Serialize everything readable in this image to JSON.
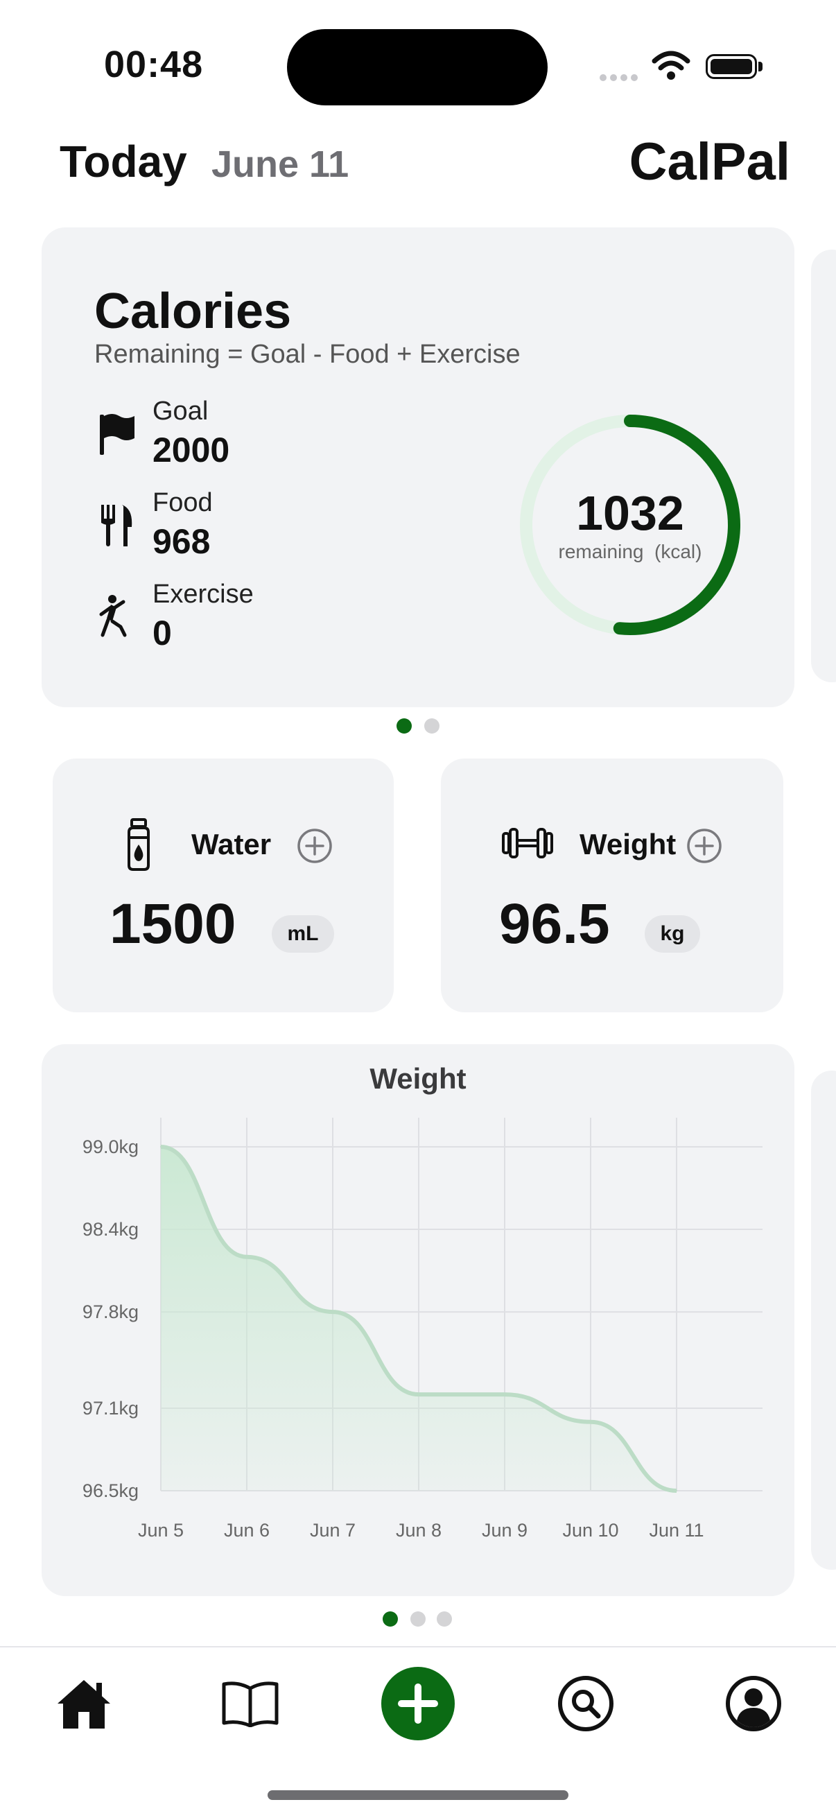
{
  "status": {
    "time": "00:48"
  },
  "header": {
    "title": "Today",
    "date": "June 11",
    "brand": "CalPal"
  },
  "calories": {
    "title": "Calories",
    "formula": "Remaining = Goal - Food + Exercise",
    "goal": {
      "label": "Goal",
      "value": "2000",
      "icon": "flag-icon"
    },
    "food": {
      "label": "Food",
      "value": "968",
      "icon": "fork-knife-icon"
    },
    "exercise": {
      "label": "Exercise",
      "value": "0",
      "icon": "runner-icon"
    },
    "remaining": {
      "value": "1032",
      "label": "remaining",
      "unit": "(kcal)",
      "progress_fraction": 0.516
    }
  },
  "water": {
    "title": "Water",
    "value": "1500",
    "unit": "mL",
    "icon": "water-bottle-icon"
  },
  "weight": {
    "title": "Weight",
    "value": "96.5",
    "unit": "kg",
    "icon": "dumbbell-icon"
  },
  "pager_top": {
    "count": 2,
    "active": 0
  },
  "pager_bottom": {
    "count": 3,
    "active": 0
  },
  "chart_data": {
    "type": "area",
    "title": "Weight",
    "x": [
      "Jun 5",
      "Jun 6",
      "Jun 7",
      "Jun 8",
      "Jun 9",
      "Jun 10",
      "Jun 11"
    ],
    "values": [
      99.0,
      98.2,
      97.8,
      97.2,
      97.2,
      97.0,
      96.5
    ],
    "y_ticks": [
      "99.0kg",
      "98.4kg",
      "97.8kg",
      "97.1kg",
      "96.5kg"
    ],
    "ylim": [
      96.5,
      99.0
    ],
    "grid": true,
    "legend": "none"
  },
  "tabs": [
    {
      "name": "home",
      "icon": "home-icon"
    },
    {
      "name": "diary",
      "icon": "book-icon"
    },
    {
      "name": "add",
      "icon": "plus-icon"
    },
    {
      "name": "search",
      "icon": "search-icon"
    },
    {
      "name": "profile",
      "icon": "profile-icon"
    }
  ],
  "colors": {
    "accent": "#0b6b14",
    "ring_track": "#e2f2e6",
    "card": "#f2f3f5",
    "line": "#bcdcc6"
  }
}
